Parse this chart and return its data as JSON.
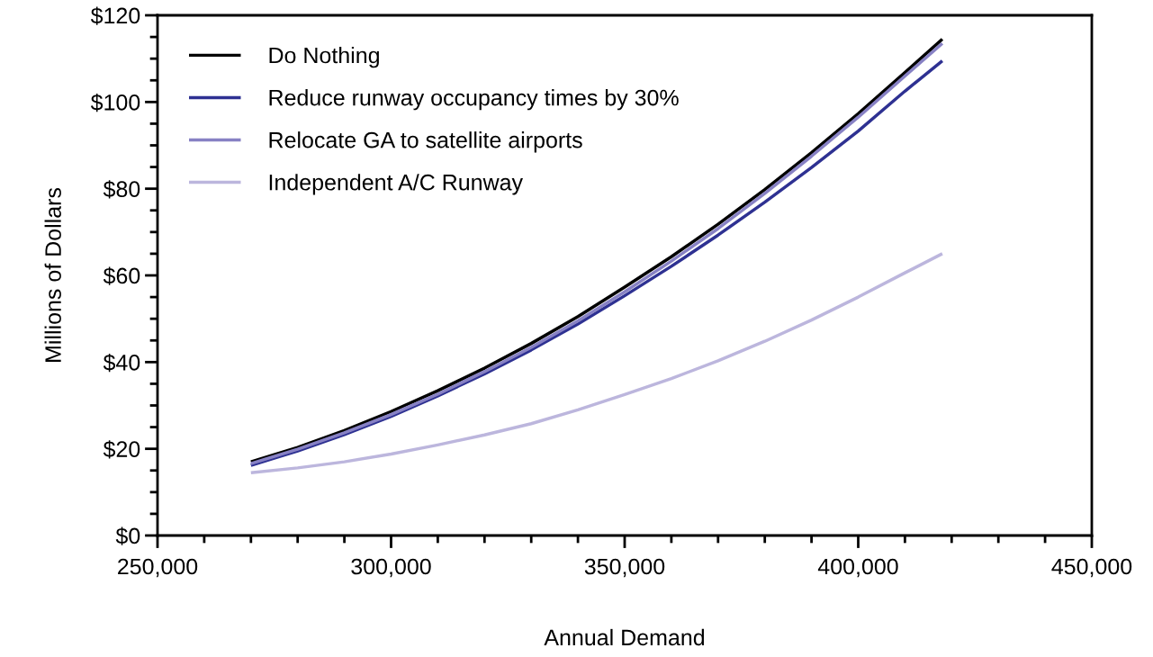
{
  "chart_data": {
    "type": "line",
    "xlabel": "Annual Demand",
    "ylabel": "Millions of Dollars",
    "x": [
      270000,
      280000,
      290000,
      300000,
      310000,
      320000,
      330000,
      340000,
      350000,
      360000,
      370000,
      380000,
      390000,
      400000,
      410000,
      418000
    ],
    "series": [
      {
        "name": "Do Nothing",
        "color": "#000000",
        "values": [
          17.0,
          20.3,
          24.2,
          28.6,
          33.4,
          38.6,
          44.3,
          50.5,
          57.3,
          64.3,
          71.8,
          79.8,
          88.3,
          97.3,
          106.8,
          114.5
        ]
      },
      {
        "name": "Reduce runway occupancy times by 30%",
        "color": "#2e3192",
        "values": [
          16.2,
          19.5,
          23.3,
          27.5,
          32.2,
          37.3,
          42.8,
          48.8,
          55.3,
          62.1,
          69.3,
          76.9,
          84.9,
          93.3,
          102.5,
          109.5
        ]
      },
      {
        "name": "Relocate GA to satellite airports",
        "color": "#8781c4",
        "values": [
          16.6,
          19.9,
          23.7,
          27.9,
          32.6,
          37.8,
          43.4,
          49.5,
          56.2,
          63.3,
          70.8,
          78.9,
          87.5,
          96.5,
          106.0,
          113.5
        ]
      },
      {
        "name": "Independent A/C Runway",
        "color": "#bcb6dd",
        "values": [
          14.5,
          15.6,
          17.0,
          18.8,
          20.9,
          23.2,
          25.8,
          29.0,
          32.5,
          36.2,
          40.3,
          44.8,
          49.7,
          55.0,
          60.6,
          65.0
        ]
      }
    ],
    "xlim": [
      250000,
      450000
    ],
    "xticks": [
      {
        "value": 250000,
        "label": "250,000"
      },
      {
        "value": 300000,
        "label": "300,000"
      },
      {
        "value": 350000,
        "label": "350,000"
      },
      {
        "value": 400000,
        "label": "400,000"
      },
      {
        "value": 450000,
        "label": "450,000"
      }
    ],
    "ylim": [
      0,
      120
    ],
    "yticks": [
      {
        "value": 0,
        "label": "$0"
      },
      {
        "value": 20,
        "label": "$20"
      },
      {
        "value": 40,
        "label": "$40"
      },
      {
        "value": 60,
        "label": "$60"
      },
      {
        "value": 80,
        "label": "$80"
      },
      {
        "value": 100,
        "label": "$100"
      },
      {
        "value": 120,
        "label": "$120"
      }
    ],
    "legend": "top left",
    "grid": false,
    "marker": "none",
    "line_style": "solid"
  }
}
